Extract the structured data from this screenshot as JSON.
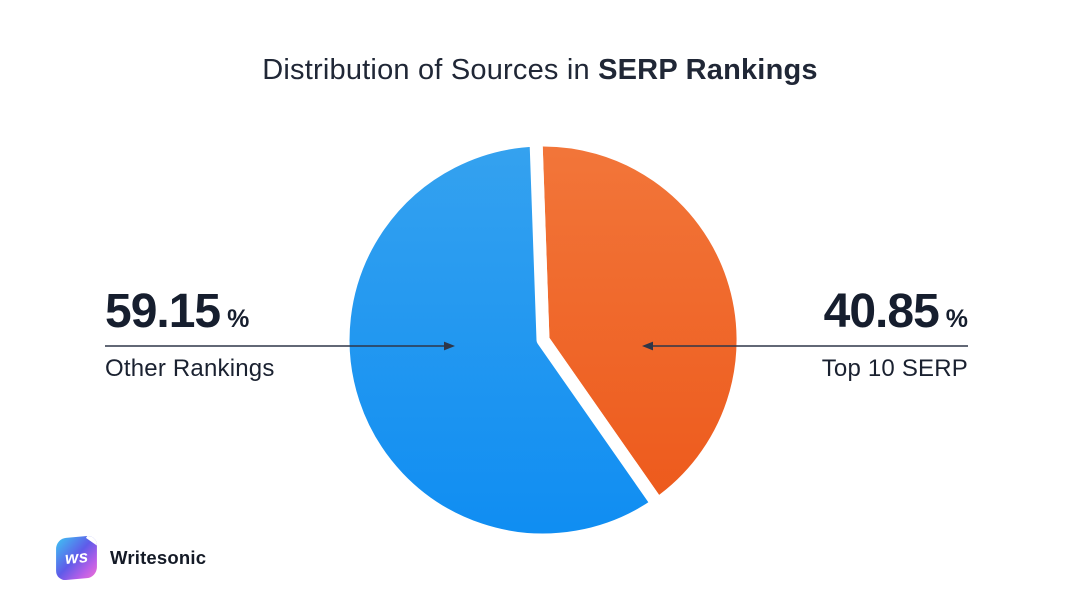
{
  "title": {
    "regular": "Distribution of Sources in ",
    "bold": "SERP Rankings"
  },
  "chart_data": {
    "type": "pie",
    "title": "Distribution of Sources in SERP Rankings",
    "legend_position": "sides",
    "start_angle_deg": -2,
    "slice_gap_color": "#FFFFFF",
    "background": "#FFFFFF",
    "slices": [
      {
        "label": "Top 10 SERP",
        "value": 40.85,
        "unit": "%",
        "side": "right",
        "color": "#EE6527",
        "color_top": "#F2763A",
        "color_bottom": "#ED5A1C"
      },
      {
        "label": "Other Rankings",
        "value": 59.15,
        "unit": "%",
        "side": "left",
        "color": "#1E96EF",
        "color_top": "#35A2EF",
        "color_bottom": "#0F8DF2"
      }
    ]
  },
  "logo": {
    "mark_text": "ws",
    "brand": "Writesonic"
  },
  "colors": {
    "text": "#1A2130",
    "leader_line": "#2F3648"
  }
}
